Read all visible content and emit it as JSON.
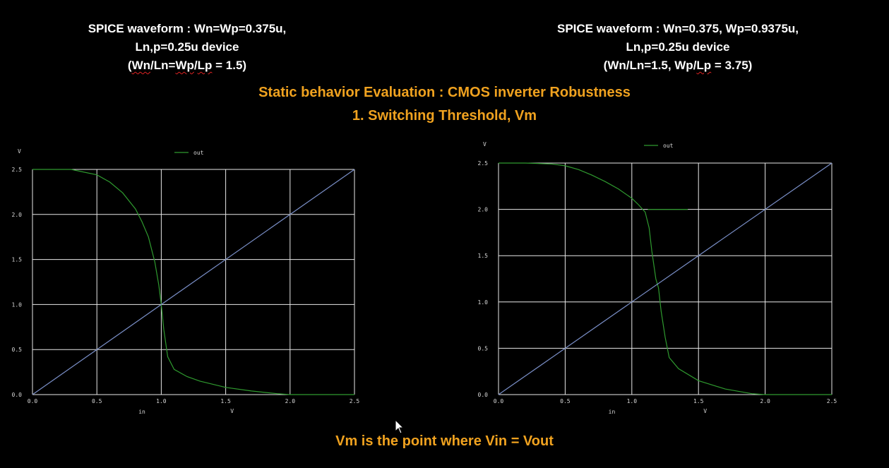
{
  "header_left": {
    "line1": "SPICE waveform : Wn=Wp=0.375u,",
    "line2": "Ln,p=0.25u device",
    "line3_a": "(",
    "line3_u1": "Wn",
    "line3_b": "/Ln=",
    "line3_u2": "Wp",
    "line3_c": "/",
    "line3_u3": "Lp",
    "line3_d": " = 1.5)"
  },
  "header_right": {
    "line1": "SPICE waveform : Wn=0.375, Wp=0.9375u,",
    "line2": "Ln,p=0.25u device",
    "line3_a": "(Wn/Ln=1.5, Wp/",
    "line3_u1": "Lp",
    "line3_b": " = 3.75)"
  },
  "title_line1": "Static behavior Evaluation : CMOS inverter Robustness",
  "title_line2": "1. Switching Threshold, Vm",
  "footer": "Vm is the point where Vin = Vout",
  "colors": {
    "accent": "#f0a21f",
    "grid": "#e8e8e8",
    "out_trace": "#2f9a2f",
    "reference_line": "#7a8fc8"
  },
  "cursor_icon": "mouse-pointer",
  "chart_data": [
    {
      "type": "line",
      "ylabel": "V",
      "xlabel_left": "in",
      "xlabel_right": "V",
      "xlim": [
        0.0,
        2.5
      ],
      "ylim": [
        0.0,
        2.5
      ],
      "x_ticks": [
        "0.0",
        "0.5",
        "1.0",
        "1.5",
        "2.0",
        "2.5"
      ],
      "y_ticks": [
        "0.0",
        "0.5",
        "1.0",
        "1.5",
        "2.0",
        "2.5"
      ],
      "grid": true,
      "legend": "top",
      "series": [
        {
          "name": "out",
          "color": "#2f9a2f",
          "x": [
            0.0,
            0.3,
            0.5,
            0.6,
            0.7,
            0.8,
            0.85,
            0.9,
            0.95,
            0.98,
            1.0,
            1.02,
            1.05,
            1.1,
            1.2,
            1.3,
            1.5,
            1.7,
            1.9,
            2.0,
            2.2,
            2.5
          ],
          "y": [
            2.5,
            2.5,
            2.44,
            2.36,
            2.24,
            2.06,
            1.92,
            1.75,
            1.47,
            1.22,
            1.0,
            0.72,
            0.42,
            0.28,
            0.2,
            0.15,
            0.08,
            0.04,
            0.01,
            0.0,
            0.0,
            0.0
          ]
        },
        {
          "name": "",
          "color": "#7a8fc8",
          "x": [
            0.0,
            2.5
          ],
          "y": [
            0.0,
            2.5
          ]
        }
      ]
    },
    {
      "type": "line",
      "ylabel": "V",
      "xlabel_left": "in",
      "xlabel_right": "V",
      "xlim": [
        0.0,
        2.5
      ],
      "ylim": [
        0.0,
        2.5
      ],
      "x_ticks": [
        "0.0",
        "0.5",
        "1.0",
        "1.5",
        "2.0",
        "2.5"
      ],
      "y_ticks": [
        "0.0",
        "0.5",
        "1.0",
        "1.5",
        "2.0",
        "2.5"
      ],
      "grid": true,
      "legend": "top",
      "series": [
        {
          "name": "out",
          "color": "#2f9a2f",
          "x": [
            0.0,
            0.2,
            0.4,
            0.5,
            0.6,
            0.7,
            0.8,
            0.9,
            1.0,
            1.05,
            1.1,
            1.13,
            1.15,
            1.18,
            1.2,
            1.22,
            1.25,
            1.28,
            1.35,
            1.5,
            1.7,
            1.9,
            2.0,
            2.5
          ],
          "y": [
            2.5,
            2.5,
            2.49,
            2.47,
            2.43,
            2.37,
            2.3,
            2.22,
            2.12,
            2.05,
            1.97,
            1.8,
            1.55,
            1.25,
            1.15,
            0.9,
            0.62,
            0.4,
            0.28,
            0.15,
            0.06,
            0.01,
            0.0,
            0.0
          ]
        },
        {
          "name": "",
          "color": "#7a8fc8",
          "x": [
            0.0,
            2.5
          ],
          "y": [
            0.0,
            2.5
          ]
        }
      ],
      "annotation_segment": {
        "x": [
          1.12,
          1.42
        ],
        "y": [
          2.0,
          2.0
        ]
      }
    }
  ]
}
